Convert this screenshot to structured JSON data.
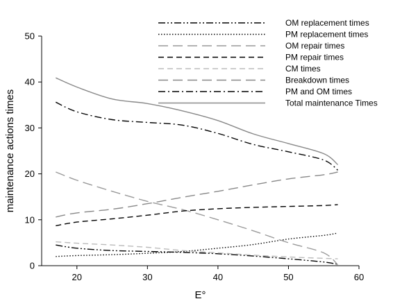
{
  "chart_data": {
    "type": "line",
    "title": "",
    "xlabel": "E°",
    "ylabel": "maintenance actions times",
    "xlim": [
      15,
      60
    ],
    "ylim": [
      0,
      50
    ],
    "xticks": [
      20,
      30,
      40,
      50,
      60
    ],
    "yticks": [
      0,
      10,
      20,
      30,
      40,
      50
    ],
    "grid": false,
    "legend_position": "top-right",
    "series": [
      {
        "name": "OM replacement times",
        "color": "#000000",
        "dash": "dashdotdot",
        "x": [
          17,
          20,
          25,
          30,
          35,
          40,
          45,
          50,
          55,
          57
        ],
        "y": [
          4.5,
          3.8,
          3.3,
          3.1,
          2.9,
          2.6,
          2.1,
          1.5,
          0.8,
          0.3
        ]
      },
      {
        "name": "PM replacement times",
        "color": "#000000",
        "dash": "dotted",
        "x": [
          17,
          20,
          25,
          30,
          35,
          40,
          45,
          50,
          55,
          57
        ],
        "y": [
          2.0,
          2.2,
          2.4,
          2.7,
          3.1,
          3.8,
          4.6,
          5.8,
          6.6,
          7.1
        ]
      },
      {
        "name": "OM repair times",
        "color": "#999999",
        "dash": "longdash",
        "x": [
          17,
          20,
          25,
          30,
          35,
          40,
          45,
          50,
          55,
          57
        ],
        "y": [
          20.4,
          18.6,
          16.2,
          14.0,
          12.2,
          10.0,
          7.6,
          5.0,
          2.8,
          0.2
        ]
      },
      {
        "name": "PM repair times",
        "color": "#000000",
        "dash": "dashed",
        "x": [
          17,
          20,
          25,
          30,
          35,
          40,
          45,
          50,
          55,
          57
        ],
        "y": [
          8.7,
          9.5,
          10.2,
          11.0,
          11.9,
          12.4,
          12.7,
          12.9,
          13.1,
          13.3
        ]
      },
      {
        "name": "CM times",
        "color": "#bbbbbb",
        "dash": "dashed",
        "x": [
          17,
          20,
          25,
          30,
          35,
          40,
          45,
          50,
          55,
          57
        ],
        "y": [
          5.2,
          4.9,
          4.5,
          4.0,
          3.3,
          2.8,
          2.3,
          1.9,
          1.6,
          1.5
        ]
      },
      {
        "name": "Breakdown times",
        "color": "#888888",
        "dash": "longdash",
        "x": [
          17,
          20,
          25,
          30,
          35,
          40,
          45,
          50,
          55,
          57
        ],
        "y": [
          10.6,
          11.5,
          12.3,
          13.5,
          14.9,
          16.2,
          17.6,
          18.9,
          19.8,
          20.4
        ]
      },
      {
        "name": "PM and OM times",
        "color": "#000000",
        "dash": "dashdot",
        "x": [
          17,
          20,
          25,
          30,
          35,
          40,
          45,
          50,
          55,
          57
        ],
        "y": [
          35.6,
          33.5,
          31.8,
          31.2,
          30.6,
          28.8,
          26.4,
          24.8,
          23.0,
          20.8
        ]
      },
      {
        "name": "Total maintenance Times",
        "color": "#888888",
        "dash": "solid",
        "x": [
          17,
          20,
          25,
          30,
          35,
          40,
          45,
          50,
          55,
          57
        ],
        "y": [
          40.9,
          38.9,
          36.3,
          35.3,
          33.7,
          31.6,
          28.7,
          26.6,
          24.4,
          22.0
        ]
      }
    ]
  }
}
